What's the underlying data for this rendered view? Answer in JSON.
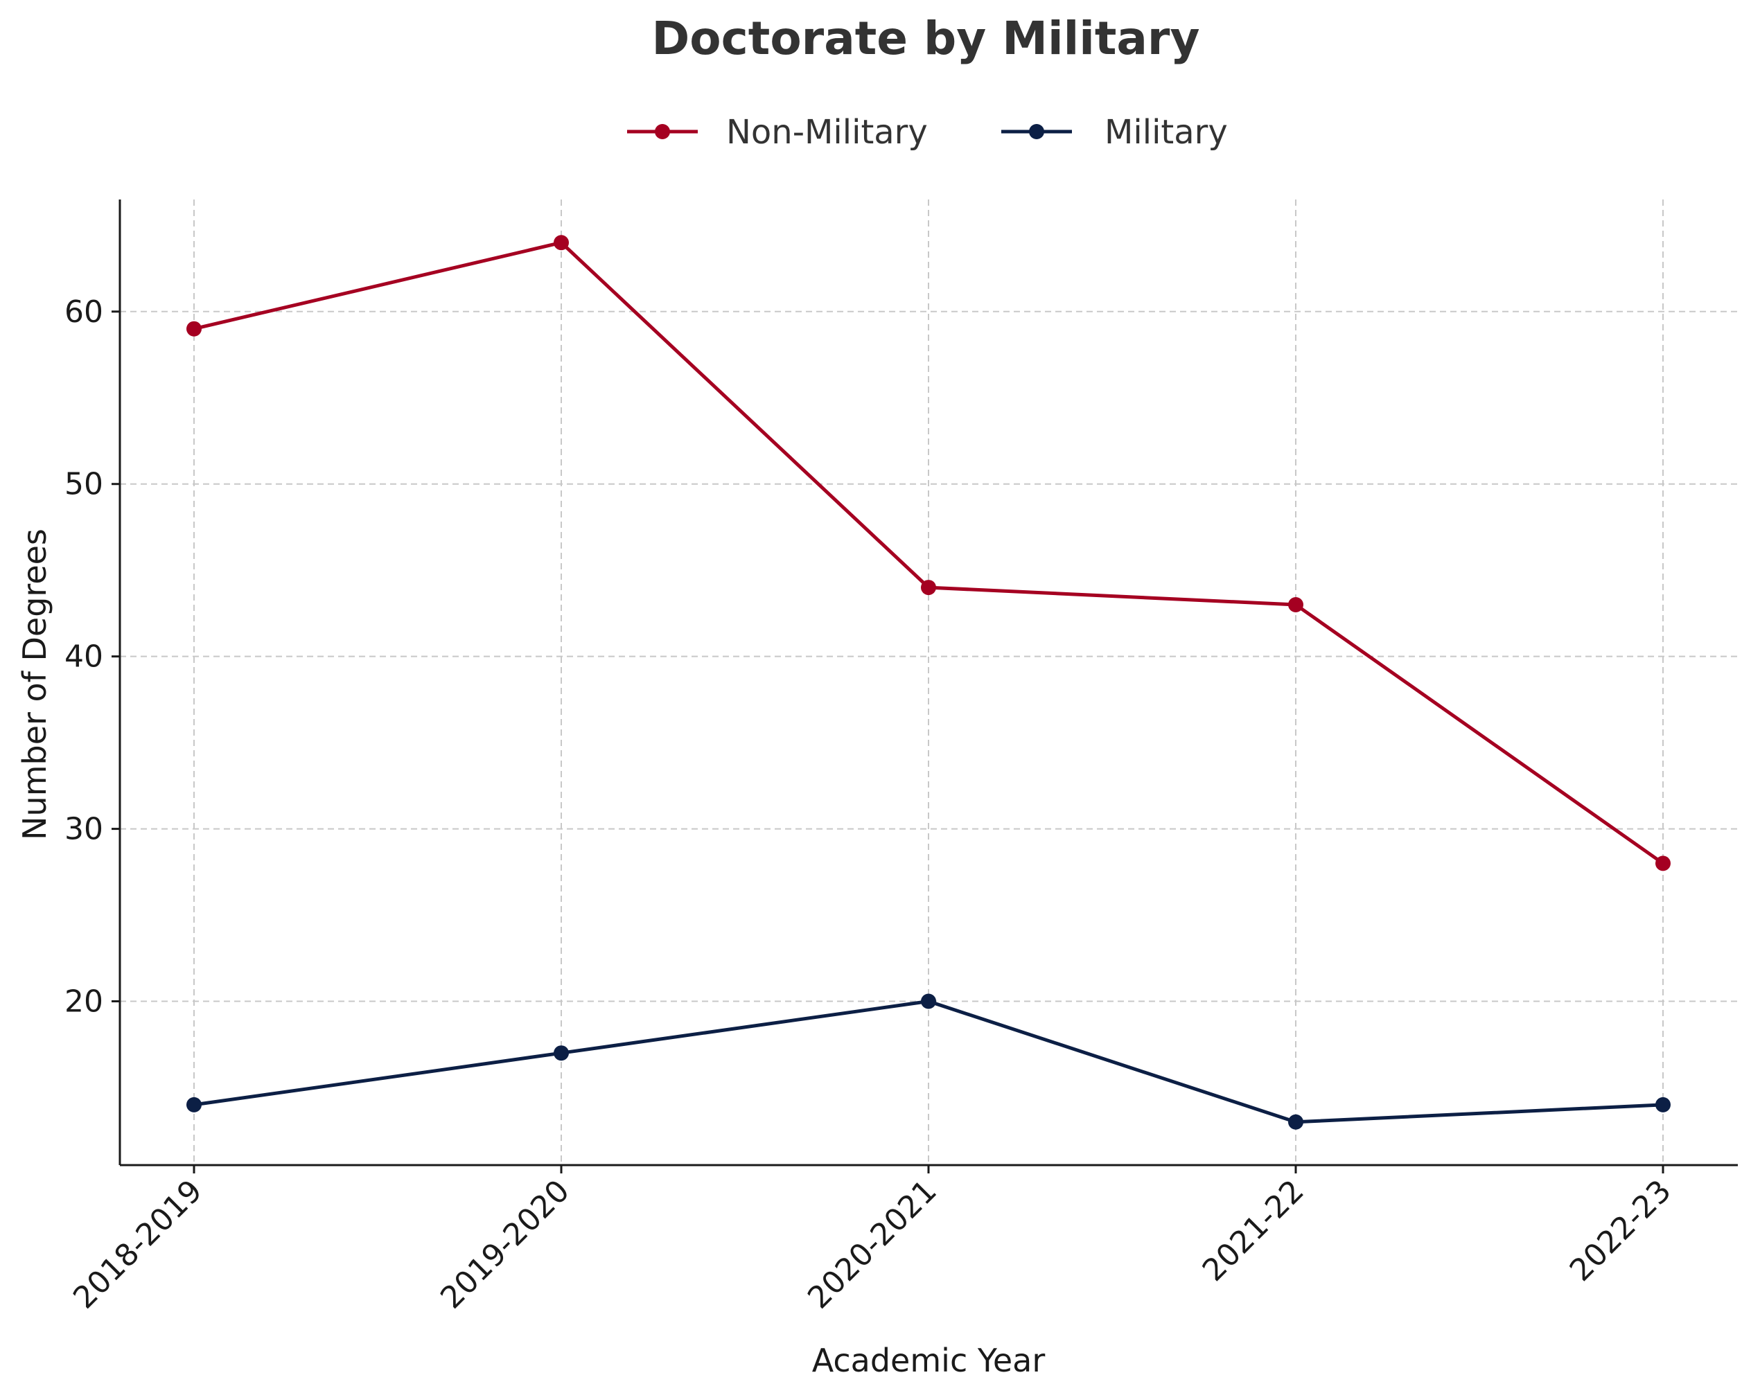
{
  "chart_data": {
    "type": "line",
    "title": "Doctorate by Military",
    "xlabel": "Academic Year",
    "ylabel": "Number of Degrees",
    "categories": [
      "2018-2019",
      "2019-2020",
      "2020-2021",
      "2021-22",
      "2022-23"
    ],
    "series": [
      {
        "name": "Non-Military",
        "color": "#a50021",
        "values": [
          59,
          64,
          44,
          43,
          28
        ]
      },
      {
        "name": "Military",
        "color": "#0c1f45",
        "values": [
          14,
          17,
          20,
          13,
          14
        ]
      }
    ],
    "ylim": [
      10.5,
      66.5
    ],
    "yticks": [
      20,
      30,
      40,
      50,
      60
    ],
    "grid": true,
    "legend_position": "top-center"
  }
}
